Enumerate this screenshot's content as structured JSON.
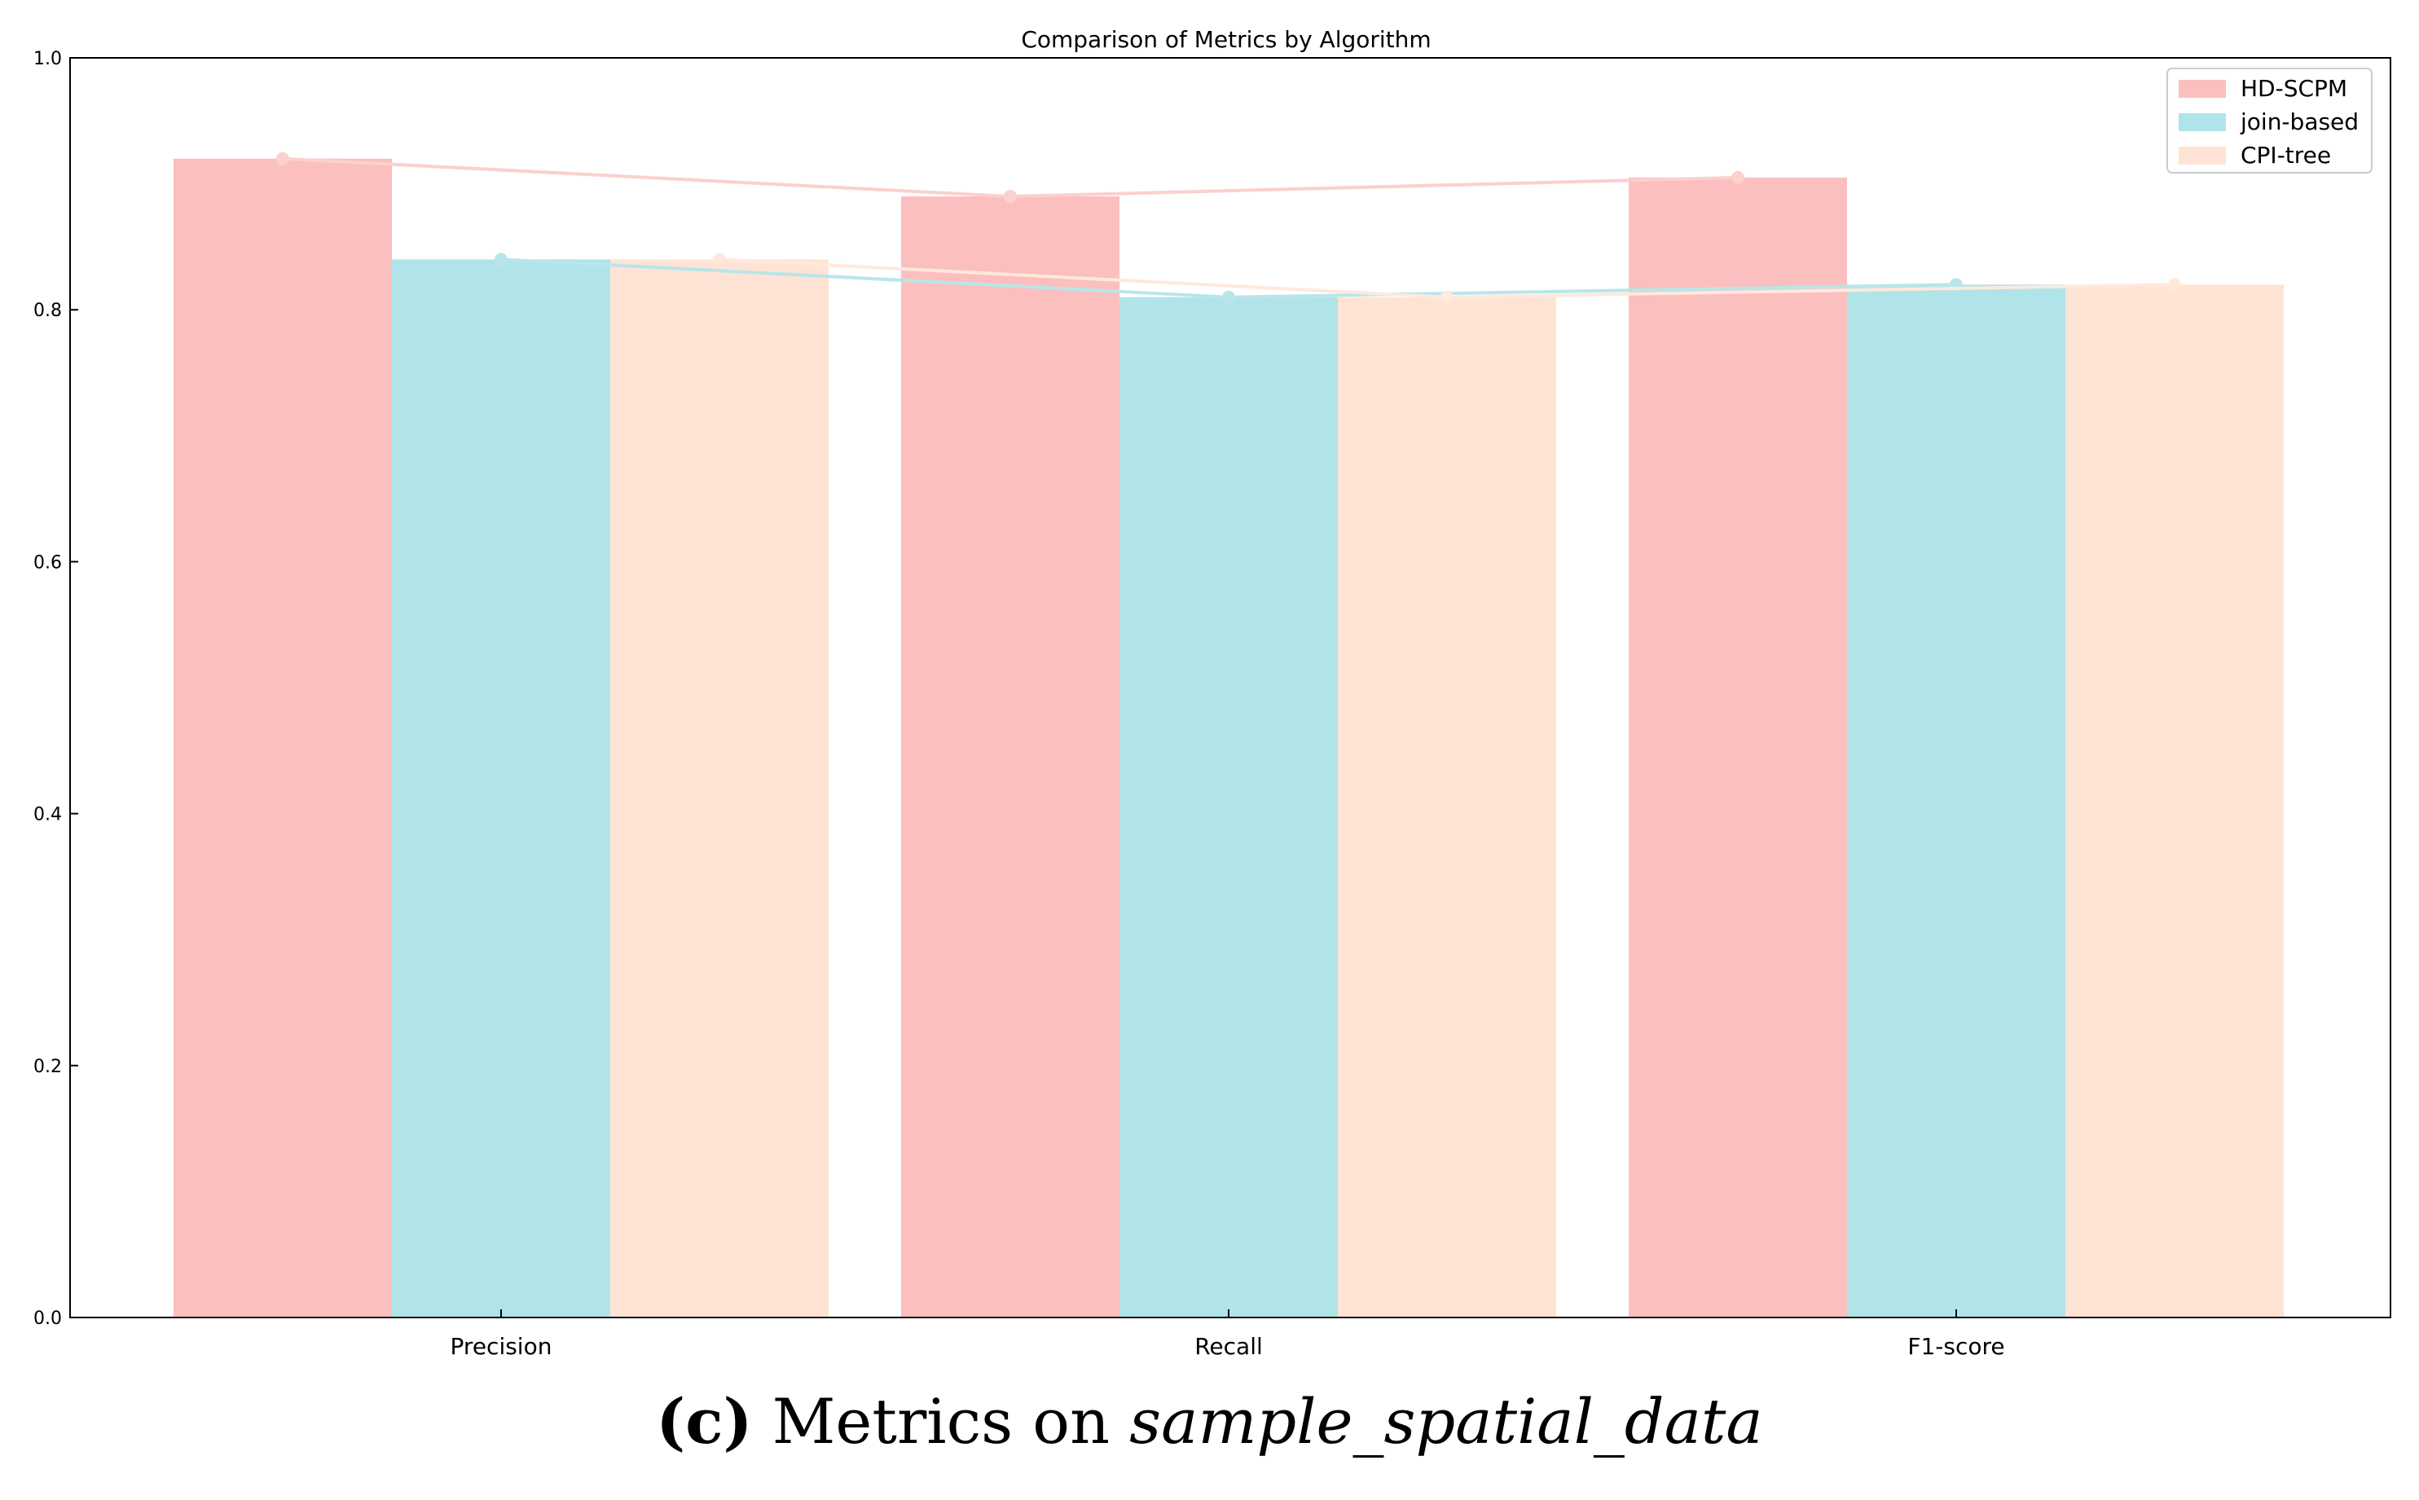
{
  "chart_data": {
    "type": "bar",
    "title": "Comparison of Metrics by Algorithm",
    "xlabel": "",
    "ylabel": "",
    "categories": [
      "Precision",
      "Recall",
      "F1-score"
    ],
    "series": [
      {
        "name": "HD-SCPM",
        "values": [
          0.92,
          0.89,
          0.905
        ],
        "color": "#fbbfbf"
      },
      {
        "name": "join-based",
        "values": [
          0.84,
          0.81,
          0.82
        ],
        "color": "#b0e4e9"
      },
      {
        "name": "CPI-tree",
        "values": [
          0.84,
          0.81,
          0.82
        ],
        "color": "#ffe4d6"
      }
    ],
    "line_colors": [
      "#fbd0cd",
      "#b8e6ea",
      "#ffe9dc"
    ],
    "ylim": [
      0,
      1.0
    ],
    "yticks": [
      "0.0",
      "0.2",
      "0.4",
      "0.6",
      "0.8",
      "1.0"
    ],
    "grid": false,
    "legend_position": "top-right",
    "overlay_lines": true
  },
  "caption": {
    "label": "(c)",
    "prefix": " Metrics on ",
    "dataset": "sample_spatial_data"
  }
}
